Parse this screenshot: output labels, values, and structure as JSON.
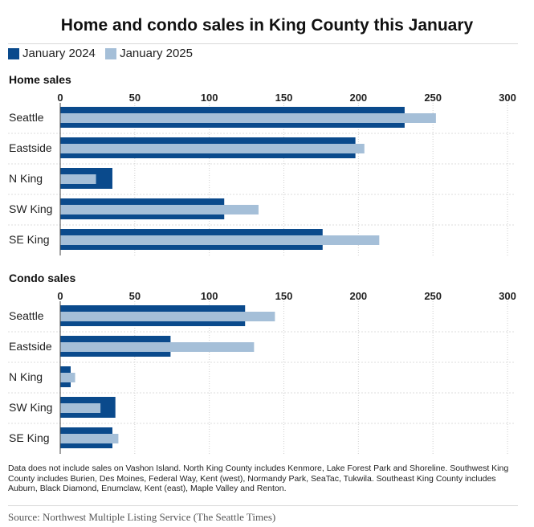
{
  "title": "Home and condo sales in King County this January",
  "legend": [
    {
      "label": "January 2024",
      "color": "#0a4a8c"
    },
    {
      "label": "January 2025",
      "color": "#a5bfd8"
    }
  ],
  "chart_data": [
    {
      "type": "bar",
      "orientation": "horizontal",
      "title": "Home sales",
      "categories": [
        "Seattle",
        "Eastside",
        "N King",
        "SW King",
        "SE King"
      ],
      "series": [
        {
          "name": "January 2024",
          "values": [
            231,
            198,
            35,
            110,
            176
          ]
        },
        {
          "name": "January 2025",
          "values": [
            252,
            204,
            24,
            133,
            214
          ]
        }
      ],
      "xlim": [
        0,
        300
      ],
      "ticks": [
        0,
        50,
        100,
        150,
        200,
        250,
        300
      ],
      "grid": true
    },
    {
      "type": "bar",
      "orientation": "horizontal",
      "title": "Condo sales",
      "categories": [
        "Seattle",
        "Eastside",
        "N King",
        "SW King",
        "SE King"
      ],
      "series": [
        {
          "name": "January 2024",
          "values": [
            124,
            74,
            7,
            37,
            35
          ]
        },
        {
          "name": "January 2025",
          "values": [
            144,
            130,
            10,
            27,
            39
          ]
        }
      ],
      "xlim": [
        0,
        300
      ],
      "ticks": [
        0,
        50,
        100,
        150,
        200,
        250,
        300
      ],
      "grid": true
    }
  ],
  "footnote": "Data does not include sales on Vashon Island. North King County includes Kenmore, Lake Forest Park and Shoreline. Southwest King County includes Burien, Des Moines, Federal Way, Kent (west), Normandy Park, SeaTac, Tukwila. Southeast King County includes Auburn, Black Diamond, Enumclaw, Kent (east), Maple Valley and Renton.",
  "source": "Source: Northwest Multiple Listing Service (The Seattle Times)"
}
